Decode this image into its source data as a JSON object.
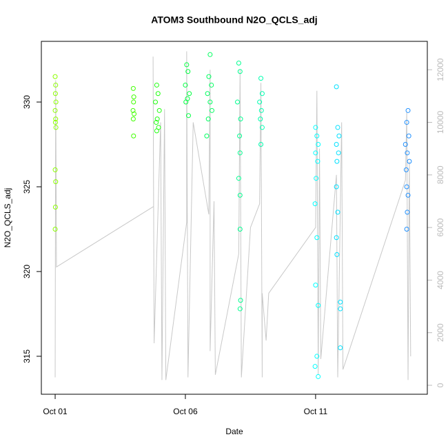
{
  "chart_data": {
    "type": "scatter",
    "title": "ATOM3 Southbound N2O_QCLS_adj",
    "x_label": "Date",
    "y_label": "N2O_QCLS_adj",
    "xlim": [
      -0.53,
      14.29
    ],
    "ylim": [
      312.76,
      333.58
    ],
    "y2lim": [
      -341,
      13080
    ],
    "xticks": [
      {
        "value": 0,
        "label": "Oct 01"
      },
      {
        "value": 5,
        "label": "Oct 06"
      },
      {
        "value": 10,
        "label": "Oct 11"
      }
    ],
    "yticks": [
      315,
      320,
      325,
      330
    ],
    "y2ticks": [
      0,
      2000,
      4000,
      6000,
      8000,
      10000,
      12000
    ],
    "series": [
      {
        "type": "line",
        "axis": "y2",
        "color": "#c8c8c8",
        "x": [
          0.0,
          0.02,
          0.05,
          3.78,
          3.76,
          3.8,
          4.05,
          4.1,
          4.2,
          4.25,
          5.05,
          5.05,
          5.1,
          5.3,
          5.9,
          5.95,
          5.95,
          6.1,
          6.15,
          7.05,
          7.1,
          7.15,
          7.5,
          7.85,
          7.9,
          7.95,
          7.95,
          8.1,
          8.2,
          10.0,
          10.05,
          10.1,
          10.15,
          10.2,
          10.8,
          10.85,
          11.0,
          11.05,
          13.45,
          13.5,
          13.55,
          13.6,
          13.65
        ],
        "values": [
          300,
          11600,
          4500,
          6800,
          12500,
          1600,
          10000,
          200,
          10500,
          200,
          6200,
          12700,
          300,
          10000,
          6500,
          12000,
          1300,
          7000,
          400,
          5000,
          12000,
          300,
          6000,
          6900,
          11500,
          300,
          3500,
          1700,
          3500,
          6000,
          11200,
          400,
          9000,
          1000,
          8000,
          300,
          10000,
          600,
          7800,
          10400,
          200,
          8500,
          1100
        ]
      },
      {
        "color": "#8cff00",
        "x": [
          0.0,
          0.02,
          0.01,
          0.03,
          0.0,
          0.02,
          0.01,
          0.03,
          0.0,
          0.02,
          0.01,
          0.0
        ],
        "values": [
          331.5,
          331,
          330.5,
          330,
          329.5,
          329,
          328.8,
          328.5,
          326,
          325.3,
          323.8,
          322.5
        ]
      },
      {
        "color": "#40ff00",
        "x": [
          3.0,
          3.02,
          3.01,
          2.99,
          3.03,
          3.0,
          3.01
        ],
        "values": [
          330.8,
          330.3,
          330,
          329.5,
          329.3,
          329,
          328
        ]
      },
      {
        "color": "#20ff10",
        "x": [
          3.9,
          3.95,
          3.85,
          4.0,
          3.92,
          3.88,
          3.97,
          3.9
        ],
        "values": [
          331,
          330.5,
          330,
          329.5,
          329,
          328.8,
          328.5,
          328.3
        ]
      },
      {
        "color": "#00ff40",
        "x": [
          5.05,
          5.1,
          5.0,
          5.15,
          5.08,
          5.02,
          5.12
        ],
        "values": [
          332.2,
          331.8,
          331,
          330.5,
          330.2,
          330,
          329.2
        ]
      },
      {
        "color": "#00ff60",
        "x": [
          5.95,
          5.9,
          6.0,
          5.85,
          5.95,
          6.02,
          5.88,
          5.82
        ],
        "values": [
          332.8,
          331.5,
          331,
          330.5,
          330,
          329.5,
          329,
          328
        ]
      },
      {
        "color": "#00ff90",
        "x": [
          7.05,
          7.1,
          7.0,
          7.12,
          7.08,
          7.1,
          7.05,
          7.1,
          7.1,
          7.12,
          7.1
        ],
        "values": [
          332.3,
          331.8,
          330,
          329,
          328,
          327,
          325.5,
          324.5,
          322.5,
          318.3,
          317.8
        ]
      },
      {
        "color": "#00ffb0",
        "x": [
          7.9,
          7.95,
          7.85,
          7.92,
          7.88,
          7.95,
          7.9
        ],
        "values": [
          331.4,
          330.5,
          330,
          329.5,
          329,
          328.5,
          327.5
        ]
      },
      {
        "color": "#00ffff",
        "x": [
          10.0,
          10.05,
          10.1,
          10.0,
          10.08,
          10.02,
          9.98,
          10.05,
          10.0,
          10.1,
          10.05,
          9.98,
          10.1
        ],
        "values": [
          328.5,
          328,
          327.5,
          327,
          326.5,
          325.5,
          324,
          322,
          319.2,
          318,
          315,
          314.4,
          313.8
        ]
      },
      {
        "color": "#00e0ff",
        "x": [
          10.8,
          10.85,
          10.9,
          10.8,
          10.88,
          10.82,
          10.8,
          10.85,
          10.8,
          10.82,
          10.95,
          10.95,
          10.95
        ],
        "values": [
          330.9,
          328.5,
          328,
          327.5,
          327,
          326.5,
          325,
          323.5,
          322,
          321,
          318.2,
          317.8,
          315.5
        ]
      },
      {
        "color": "#2090ff",
        "x": [
          13.55,
          13.5,
          13.58,
          13.45,
          13.52,
          13.6,
          13.48,
          13.5,
          13.55,
          13.52,
          13.5
        ],
        "values": [
          329.5,
          328.8,
          328,
          327.5,
          327,
          326.5,
          326,
          325,
          324.5,
          323.5,
          322.5
        ]
      }
    ]
  }
}
